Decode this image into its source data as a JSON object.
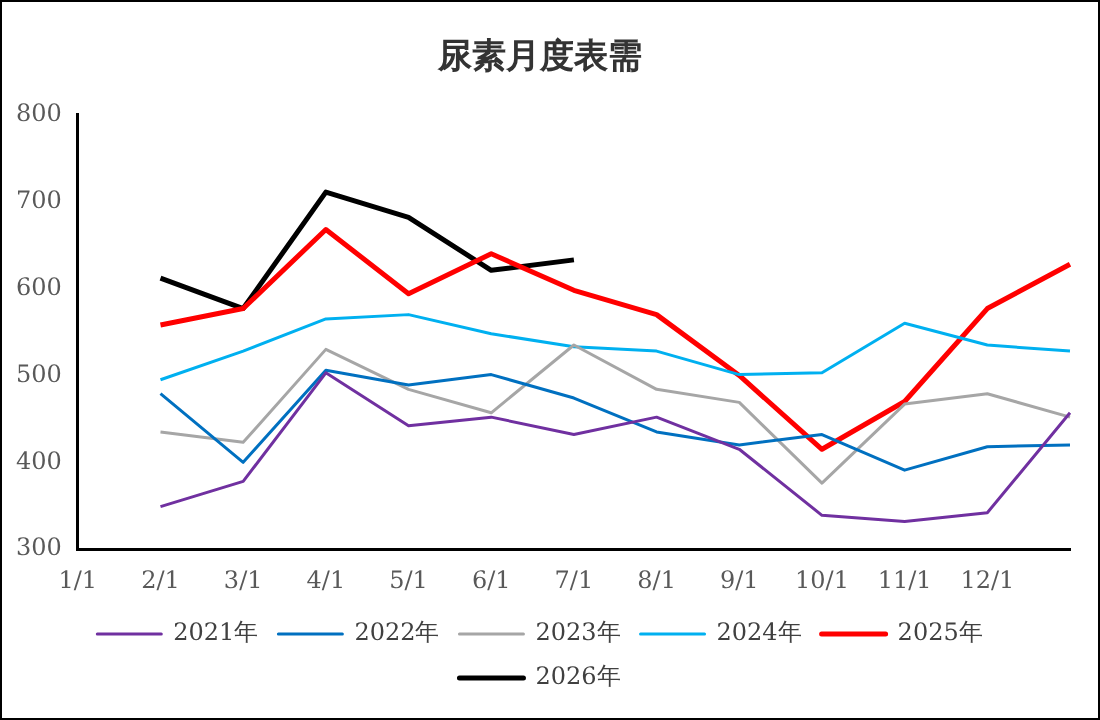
{
  "chart_data": {
    "type": "line",
    "title": "尿素月度表需",
    "categories": [
      "1/1",
      "2/1",
      "3/1",
      "4/1",
      "5/1",
      "6/1",
      "7/1",
      "8/1",
      "9/1",
      "10/1",
      "11/1",
      "12/1",
      null
    ],
    "series": [
      {
        "name": "2021年",
        "color": "#7030a0",
        "values": [
          null,
          349,
          378,
          503,
          442,
          452,
          432,
          452,
          415,
          339,
          332,
          342,
          457
        ]
      },
      {
        "name": "2022年",
        "color": "#0070c0",
        "values": [
          null,
          479,
          400,
          506,
          489,
          501,
          474,
          435,
          420,
          432,
          391,
          418,
          420
        ]
      },
      {
        "name": "2023年",
        "color": "#a6a6a6",
        "values": [
          null,
          435,
          423,
          530,
          484,
          457,
          535,
          484,
          469,
          376,
          467,
          479,
          452
        ]
      },
      {
        "name": "2024年",
        "color": "#00b0f0",
        "values": [
          null,
          495,
          528,
          565,
          570,
          548,
          533,
          528,
          501,
          503,
          560,
          535,
          528
        ]
      },
      {
        "name": "2025年",
        "color": "#ff0000",
        "values": [
          null,
          558,
          577,
          668,
          594,
          640,
          598,
          570,
          500,
          415,
          470,
          577,
          628
        ]
      },
      {
        "name": "2026年",
        "color": "#000000",
        "values": [
          null,
          612,
          577,
          711,
          682,
          621,
          633,
          null,
          null,
          null,
          null,
          null,
          null
        ]
      }
    ],
    "ylim": [
      300,
      800
    ],
    "yticks": [
      300,
      400,
      500,
      600,
      700,
      800
    ],
    "grid": false,
    "legend": "bottom",
    "marker": "none",
    "line_style": "solid"
  }
}
